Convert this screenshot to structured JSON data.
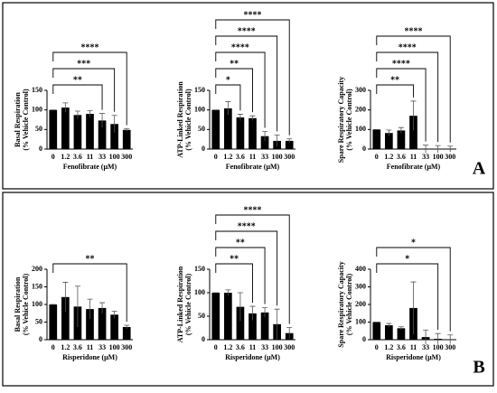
{
  "chart_data": [
    {
      "type": "bar",
      "panel": "A",
      "ylabel": [
        "Basal Respiration",
        "(% Vehicle Control)"
      ],
      "xlabel": "Fenofibrate (μM)",
      "categories": [
        "0",
        "1.2",
        "3.6",
        "11",
        "33",
        "100",
        "300"
      ],
      "values": [
        100,
        106,
        87,
        90,
        73,
        64,
        49
      ],
      "errors": [
        0,
        12,
        10,
        8,
        18,
        22,
        3
      ],
      "color": "#000000",
      "ylim": [
        0,
        150
      ],
      "yticks": [
        0,
        50,
        100,
        150
      ],
      "brackets": [
        {
          "start": "0",
          "end": "33",
          "label": "**"
        },
        {
          "start": "0",
          "end": "100",
          "label": "***"
        },
        {
          "start": "0",
          "end": "300",
          "label": "****"
        }
      ]
    },
    {
      "type": "bar",
      "ylabel": [
        "ATP-Linked Respiration",
        "(% Vehicle Control)"
      ],
      "xlabel": "Fenofibrate (μM)",
      "categories": [
        "0",
        "1.2",
        "3.6",
        "11",
        "33",
        "100",
        "300"
      ],
      "values": [
        100,
        104,
        81,
        79,
        33,
        21,
        21
      ],
      "errors": [
        0,
        17,
        8,
        6,
        12,
        15,
        5
      ],
      "color": "#000000",
      "ylim": [
        0,
        150
      ],
      "yticks": [
        0,
        50,
        100,
        150
      ],
      "brackets": [
        {
          "start": "0",
          "end": "3.6",
          "label": "*"
        },
        {
          "start": "0",
          "end": "11",
          "label": "**"
        },
        {
          "start": "0",
          "end": "33",
          "label": "****"
        },
        {
          "start": "0",
          "end": "100",
          "label": "****"
        },
        {
          "start": "0",
          "end": "300",
          "label": "****"
        }
      ]
    },
    {
      "type": "bar",
      "ylabel": [
        "Spare Respiratory Capacity",
        "(% Vehicle Control)"
      ],
      "xlabel": "Fenofibrate (μM)",
      "categories": [
        "0",
        "1.2",
        "3.6",
        "11",
        "33",
        "100",
        "300"
      ],
      "values": [
        100,
        82,
        95,
        170,
        0,
        0,
        0
      ],
      "errors": [
        0,
        15,
        15,
        75,
        20,
        18,
        15
      ],
      "color": "#000000",
      "ylim": [
        0,
        300
      ],
      "yticks": [
        0,
        100,
        200,
        300
      ],
      "brackets": [
        {
          "start": "0",
          "end": "11",
          "label": "**"
        },
        {
          "start": "0",
          "end": "33",
          "label": "****"
        },
        {
          "start": "0",
          "end": "100",
          "label": "****"
        },
        {
          "start": "0",
          "end": "300",
          "label": "****"
        }
      ]
    },
    {
      "type": "bar",
      "panel": "B",
      "ylabel": [
        "Basal Respiration",
        "(% Vehicle Control)"
      ],
      "xlabel": "Risperidone (μM)",
      "categories": [
        "0",
        "1.2",
        "3.6",
        "11",
        "33",
        "100",
        "300"
      ],
      "values": [
        100,
        121,
        94,
        87,
        90,
        71,
        36
      ],
      "errors": [
        0,
        42,
        58,
        28,
        15,
        10,
        5
      ],
      "color": "#000000",
      "ylim": [
        0,
        200
      ],
      "yticks": [
        0,
        50,
        100,
        150,
        200
      ],
      "brackets": [
        {
          "start": "0",
          "end": "300",
          "label": "**"
        }
      ]
    },
    {
      "type": "bar",
      "ylabel": [
        "ATP-Linked Respiration",
        "(% Vehicle Control)"
      ],
      "xlabel": "Risperidone (μM)",
      "categories": [
        "0",
        "1.2",
        "3.6",
        "11",
        "33",
        "100",
        "300"
      ],
      "values": [
        100,
        100,
        70,
        56,
        58,
        33,
        14
      ],
      "errors": [
        0,
        6,
        30,
        15,
        10,
        32,
        12
      ],
      "color": "#000000",
      "ylim": [
        0,
        150
      ],
      "yticks": [
        0,
        50,
        100,
        150
      ],
      "brackets": [
        {
          "start": "0",
          "end": "11",
          "label": "**"
        },
        {
          "start": "0",
          "end": "33",
          "label": "**"
        },
        {
          "start": "0",
          "end": "100",
          "label": "****"
        },
        {
          "start": "0",
          "end": "300",
          "label": "****"
        }
      ]
    },
    {
      "type": "bar",
      "ylabel": [
        "Spare Respiratory Capacity",
        "(% Vehicle Control)"
      ],
      "xlabel": "Risperidone (μM)",
      "categories": [
        "0",
        "1.2",
        "3.6",
        "11",
        "33",
        "100",
        "300"
      ],
      "values": [
        100,
        82,
        65,
        180,
        15,
        5,
        2
      ],
      "errors": [
        0,
        10,
        8,
        148,
        40,
        30,
        25
      ],
      "color": "#000000",
      "ylim": [
        0,
        400
      ],
      "yticks": [
        0,
        100,
        200,
        300,
        400
      ],
      "brackets": [
        {
          "start": "0",
          "end": "100",
          "label": "*"
        },
        {
          "start": "0",
          "end": "300",
          "label": "*"
        }
      ]
    }
  ]
}
